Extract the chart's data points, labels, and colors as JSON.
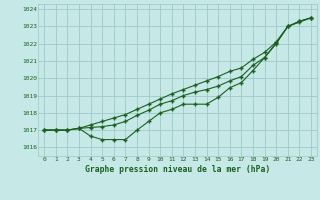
{
  "title": "Graphe pression niveau de la mer (hPa)",
  "bg_color": "#c6e8e6",
  "grid_color": "#9ec8c6",
  "line_color": "#1a6020",
  "xlim": [
    -0.5,
    23.5
  ],
  "ylim": [
    1015.5,
    1024.3
  ],
  "yticks": [
    1016,
    1017,
    1018,
    1019,
    1020,
    1021,
    1022,
    1023,
    1024
  ],
  "xticks": [
    0,
    1,
    2,
    3,
    4,
    5,
    6,
    7,
    8,
    9,
    10,
    11,
    12,
    13,
    14,
    15,
    16,
    17,
    18,
    19,
    20,
    21,
    22,
    23
  ],
  "line_low": [
    1017.0,
    1017.0,
    1017.0,
    1017.1,
    1016.65,
    1016.45,
    1016.45,
    1016.45,
    1017.0,
    1017.5,
    1018.0,
    1018.2,
    1018.5,
    1018.5,
    1018.5,
    1018.9,
    1019.45,
    1019.75,
    1020.45,
    1021.2,
    1022.0,
    1023.0,
    1023.3,
    1023.5
  ],
  "line_high": [
    1017.0,
    1017.0,
    1017.0,
    1017.1,
    1017.3,
    1017.5,
    1017.7,
    1017.9,
    1018.2,
    1018.5,
    1018.8,
    1019.1,
    1019.35,
    1019.6,
    1019.85,
    1020.1,
    1020.4,
    1020.6,
    1021.1,
    1021.5,
    1022.1,
    1023.0,
    1023.3,
    1023.5
  ],
  "line_mid": [
    1017.0,
    1017.0,
    1017.0,
    1017.1,
    1017.15,
    1017.2,
    1017.3,
    1017.5,
    1017.85,
    1018.15,
    1018.5,
    1018.7,
    1019.0,
    1019.2,
    1019.35,
    1019.55,
    1019.85,
    1020.1,
    1020.75,
    1021.2,
    1022.05,
    1023.0,
    1023.25,
    1023.5
  ]
}
